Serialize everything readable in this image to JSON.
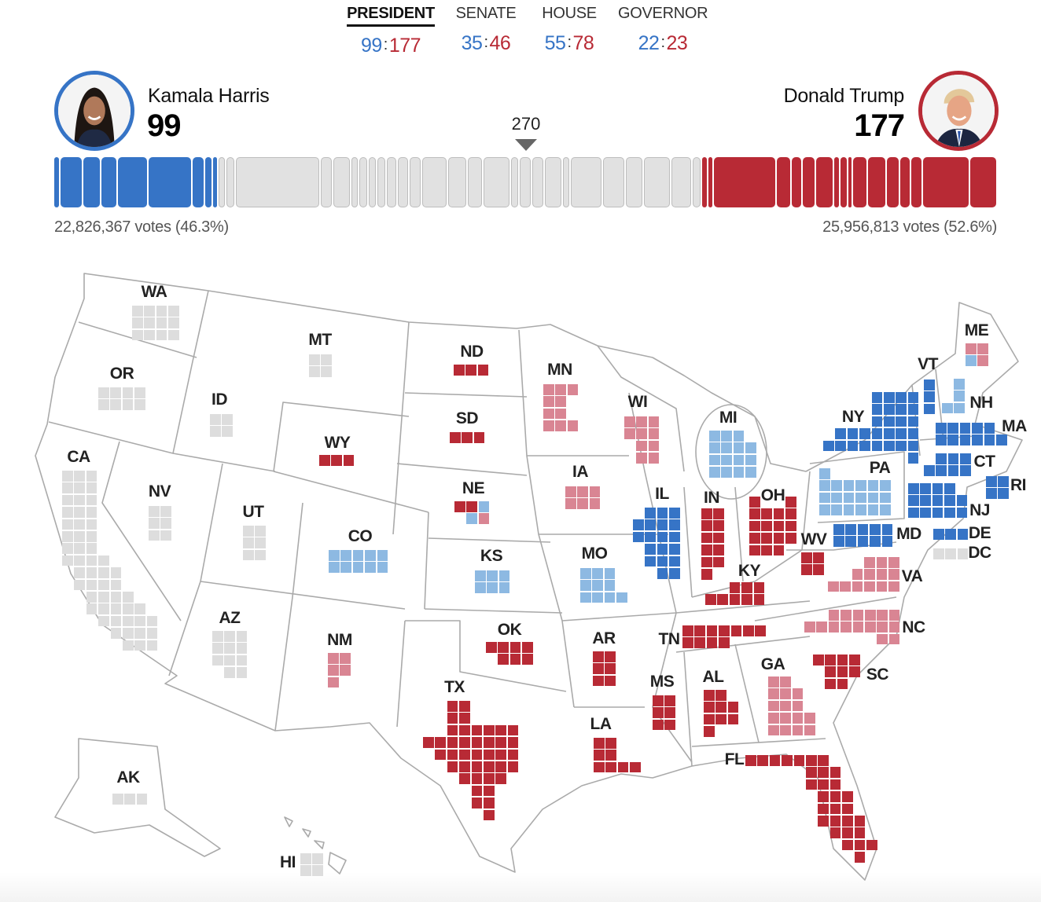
{
  "tabs": [
    {
      "label": "PRESIDENT",
      "dem": "99",
      "rep": "177",
      "active": true
    },
    {
      "label": "SENATE",
      "dem": "35",
      "rep": "46",
      "active": false
    },
    {
      "label": "HOUSE",
      "dem": "55",
      "rep": "78",
      "active": false
    },
    {
      "label": "GOVERNOR",
      "dem": "22",
      "rep": "23",
      "active": false
    }
  ],
  "candidates": {
    "dem": {
      "name": "Kamala Harris",
      "ev": "99",
      "votes": "22,826,367 votes (46.3%)"
    },
    "rep": {
      "name": "Donald Trump",
      "ev": "177",
      "votes": "25,956,813 votes (52.6%)"
    }
  },
  "threshold": "270",
  "colors": {
    "dem-called": "#3674c6",
    "dem-lead": "#8db9e2",
    "rep-called": "#b82a35",
    "rep-lead": "#d98593",
    "uncalled": "#dddddd",
    "border": "#aaaaaa"
  },
  "bar": {
    "dem": [
      3,
      14,
      11,
      10,
      19,
      28,
      7,
      4,
      3
    ],
    "uncalled": [
      3,
      4,
      54,
      6,
      10,
      3,
      4,
      4,
      4,
      5,
      6,
      6,
      15,
      11,
      8,
      16,
      4,
      6,
      6,
      10,
      3,
      19,
      13,
      10,
      16,
      12,
      4
    ],
    "rep": [
      3,
      3,
      40,
      9,
      6,
      8,
      11,
      3,
      4,
      2,
      9,
      11,
      8,
      6,
      7,
      30,
      17
    ]
  },
  "states": [
    {
      "abbr": "WA",
      "status": "uncalled"
    },
    {
      "abbr": "OR",
      "status": "uncalled"
    },
    {
      "abbr": "CA",
      "status": "uncalled"
    },
    {
      "abbr": "ID",
      "status": "uncalled"
    },
    {
      "abbr": "NV",
      "status": "uncalled"
    },
    {
      "abbr": "MT",
      "status": "uncalled"
    },
    {
      "abbr": "WY",
      "status": "rep-called"
    },
    {
      "abbr": "UT",
      "status": "uncalled"
    },
    {
      "abbr": "CO",
      "status": "dem-lead"
    },
    {
      "abbr": "AZ",
      "status": "uncalled"
    },
    {
      "abbr": "NM",
      "status": "rep-lead"
    },
    {
      "abbr": "ND",
      "status": "rep-called"
    },
    {
      "abbr": "SD",
      "status": "rep-called"
    },
    {
      "abbr": "NE",
      "status": "split",
      "tiles": [
        "rep-called",
        "rep-called",
        "dem-lead",
        "dem-lead",
        "rep-lead"
      ]
    },
    {
      "abbr": "KS",
      "status": "dem-lead"
    },
    {
      "abbr": "OK",
      "status": "rep-called"
    },
    {
      "abbr": "TX",
      "status": "rep-called"
    },
    {
      "abbr": "MN",
      "status": "rep-lead"
    },
    {
      "abbr": "IA",
      "status": "rep-lead"
    },
    {
      "abbr": "MO",
      "status": "dem-lead"
    },
    {
      "abbr": "AR",
      "status": "rep-called"
    },
    {
      "abbr": "LA",
      "status": "rep-called"
    },
    {
      "abbr": "WI",
      "status": "rep-lead"
    },
    {
      "abbr": "IL",
      "status": "dem-called"
    },
    {
      "abbr": "MI",
      "status": "dem-lead"
    },
    {
      "abbr": "IN",
      "status": "rep-called"
    },
    {
      "abbr": "OH",
      "status": "rep-called"
    },
    {
      "abbr": "KY",
      "status": "rep-called"
    },
    {
      "abbr": "TN",
      "status": "rep-called"
    },
    {
      "abbr": "MS",
      "status": "rep-called"
    },
    {
      "abbr": "AL",
      "status": "rep-called"
    },
    {
      "abbr": "GA",
      "status": "rep-lead"
    },
    {
      "abbr": "FL",
      "status": "rep-called"
    },
    {
      "abbr": "SC",
      "status": "rep-called"
    },
    {
      "abbr": "NC",
      "status": "rep-lead"
    },
    {
      "abbr": "VA",
      "status": "rep-lead"
    },
    {
      "abbr": "WV",
      "status": "rep-called"
    },
    {
      "abbr": "MD",
      "status": "dem-called"
    },
    {
      "abbr": "DE",
      "status": "dem-called"
    },
    {
      "abbr": "DC",
      "status": "uncalled"
    },
    {
      "abbr": "NJ",
      "status": "dem-called"
    },
    {
      "abbr": "RI",
      "status": "dem-called"
    },
    {
      "abbr": "CT",
      "status": "dem-called"
    },
    {
      "abbr": "MA",
      "status": "dem-called"
    },
    {
      "abbr": "NH",
      "status": "dem-lead"
    },
    {
      "abbr": "VT",
      "status": "dem-called"
    },
    {
      "abbr": "NY",
      "status": "dem-called"
    },
    {
      "abbr": "PA",
      "status": "dem-lead"
    },
    {
      "abbr": "ME",
      "status": "split",
      "tiles": [
        "rep-lead",
        "rep-lead",
        "dem-lead",
        "rep-lead"
      ]
    },
    {
      "abbr": "AK",
      "status": "uncalled"
    },
    {
      "abbr": "HI",
      "status": "uncalled"
    }
  ]
}
